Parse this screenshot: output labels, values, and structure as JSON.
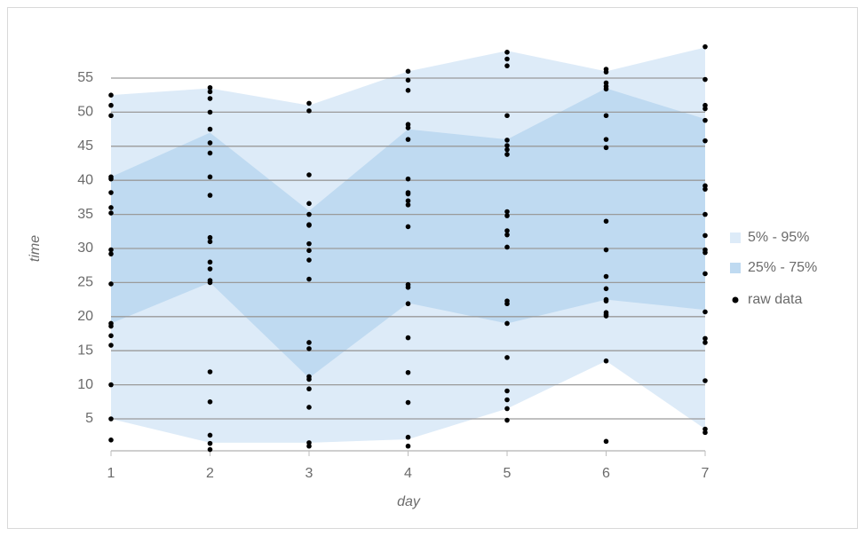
{
  "chart_data": {
    "type": "band-scatter",
    "x_label": "day",
    "y_label": "time",
    "xlim": [
      1,
      7
    ],
    "xticks": [
      1,
      2,
      3,
      4,
      5,
      6,
      7
    ],
    "ylim": [
      0,
      60
    ],
    "yticks": [
      5,
      10,
      15,
      20,
      25,
      30,
      35,
      40,
      45,
      50,
      55
    ],
    "grid": true,
    "legend": "right",
    "bands": [
      {
        "name": "5% - 95%",
        "color": "#ddebf8",
        "x": [
          1,
          2,
          3,
          4,
          5,
          6,
          7
        ],
        "upper": [
          52.5,
          53.5,
          51,
          56,
          59,
          56,
          59.5
        ],
        "lower": [
          5,
          1.5,
          1.5,
          2,
          6.5,
          13.5,
          3.5
        ]
      },
      {
        "name": "25% - 75%",
        "color": "#bfdaf1",
        "x": [
          1,
          2,
          3,
          4,
          5,
          6,
          7
        ],
        "upper": [
          40.5,
          47,
          35.5,
          47.5,
          46,
          53.5,
          49
        ],
        "lower": [
          19,
          25,
          11,
          22,
          19,
          22.5,
          21
        ]
      }
    ],
    "points": {
      "name": "raw data",
      "color": "#000000",
      "x": [
        1,
        1,
        1,
        1,
        1,
        1,
        1,
        1,
        1,
        1,
        1,
        1,
        1,
        1,
        1,
        1,
        1,
        1,
        2,
        2,
        2,
        2,
        2,
        2,
        2,
        2,
        2,
        2,
        2,
        2,
        2,
        2,
        2,
        2,
        2,
        2,
        2,
        2,
        3,
        3,
        3,
        3,
        3,
        3,
        3,
        3,
        3,
        3,
        3,
        3,
        3,
        3,
        3,
        3,
        3,
        3,
        3,
        4,
        4,
        4,
        4,
        4,
        4,
        4,
        4,
        4,
        4,
        4,
        4,
        4,
        4,
        4,
        4,
        4,
        4,
        4,
        4,
        5,
        5,
        5,
        5,
        5,
        5,
        5,
        5,
        5,
        5,
        5,
        5,
        5,
        5,
        5,
        5,
        5,
        5,
        5,
        5,
        5,
        6,
        6,
        6,
        6,
        6,
        6,
        6,
        6,
        6,
        6,
        6,
        6,
        6,
        6,
        6,
        6,
        6,
        6,
        6,
        7,
        7,
        7,
        7,
        7,
        7,
        7,
        7,
        7,
        7,
        7,
        7,
        7,
        7,
        7,
        7,
        7,
        7,
        7
      ],
      "values": [
        52.5,
        51,
        49.5,
        40.5,
        40.2,
        38.2,
        36,
        35.2,
        29.8,
        29.2,
        24.8,
        19,
        18.6,
        17.2,
        15.8,
        10,
        5,
        1.9,
        53.6,
        53,
        52,
        50,
        47.5,
        45.5,
        44,
        40.5,
        37.8,
        31.6,
        31,
        28,
        27,
        25.3,
        25,
        11.9,
        7.5,
        2.6,
        1.4,
        0.5,
        51.3,
        50.2,
        40.8,
        36.6,
        35,
        33.5,
        33.4,
        30.7,
        29.7,
        28.3,
        25.5,
        16.2,
        15.3,
        11.2,
        10.8,
        9.4,
        6.7,
        1.5,
        1,
        56,
        54.7,
        53.2,
        48.2,
        47.7,
        46,
        40.2,
        38.2,
        38,
        37,
        36.4,
        33.2,
        24.7,
        24.3,
        21.9,
        16.9,
        11.8,
        7.4,
        2.3,
        1,
        58.8,
        57.8,
        56.8,
        49.5,
        45.9,
        45.1,
        44.5,
        43.8,
        35.4,
        34.8,
        32.6,
        32,
        30.2,
        22.3,
        21.9,
        19,
        14,
        9.1,
        7.8,
        6.5,
        4.8,
        56.3,
        55.9,
        54.3,
        53.8,
        53.4,
        49.5,
        46,
        44.8,
        34,
        29.8,
        25.9,
        24.1,
        22.5,
        22.3,
        20.6,
        20.3,
        20.1,
        13.5,
        1.7,
        59.6,
        54.8,
        51,
        50.5,
        48.8,
        45.8,
        39.2,
        38.7,
        35,
        31.9,
        29.8,
        29.4,
        26.3,
        20.7,
        16.8,
        16.2,
        10.6,
        3.5,
        3
      ]
    }
  }
}
